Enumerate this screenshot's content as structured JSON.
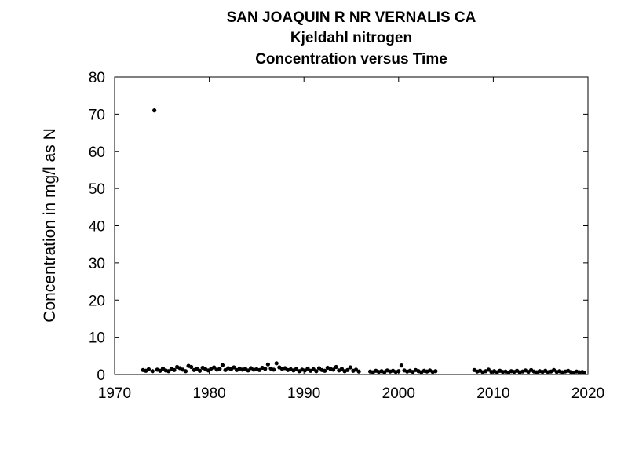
{
  "chart_data": {
    "type": "scatter",
    "title": "SAN JOAQUIN R NR VERNALIS CA",
    "subtitle": "Kjeldahl nitrogen",
    "subtitle2": "Concentration versus Time",
    "xlabel": "",
    "ylabel": "Concentration in mg/l as N",
    "xlim": [
      1970,
      2020
    ],
    "ylim": [
      0,
      80
    ],
    "xticks": [
      1970,
      1980,
      1990,
      2000,
      2010,
      2020
    ],
    "yticks": [
      0,
      10,
      20,
      30,
      40,
      50,
      60,
      70,
      80
    ],
    "grid": false,
    "legend": "none",
    "marker_color": "#000000",
    "series": [
      {
        "points": [
          [
            1973.0,
            1.2
          ],
          [
            1973.3,
            1.0
          ],
          [
            1973.6,
            1.4
          ],
          [
            1974.0,
            0.9
          ],
          [
            1974.2,
            71.0
          ],
          [
            1974.5,
            1.3
          ],
          [
            1974.8,
            1.0
          ],
          [
            1975.1,
            1.6
          ],
          [
            1975.4,
            1.1
          ],
          [
            1975.7,
            0.9
          ],
          [
            1976.0,
            1.5
          ],
          [
            1976.3,
            1.2
          ],
          [
            1976.6,
            2.0
          ],
          [
            1976.9,
            1.7
          ],
          [
            1977.2,
            1.3
          ],
          [
            1977.5,
            0.9
          ],
          [
            1977.8,
            2.3
          ],
          [
            1978.1,
            2.0
          ],
          [
            1978.4,
            1.2
          ],
          [
            1978.7,
            1.5
          ],
          [
            1979.0,
            1.0
          ],
          [
            1979.3,
            1.8
          ],
          [
            1979.6,
            1.4
          ],
          [
            1979.9,
            1.1
          ],
          [
            1980.2,
            1.6
          ],
          [
            1980.5,
            1.9
          ],
          [
            1980.8,
            1.3
          ],
          [
            1981.1,
            1.5
          ],
          [
            1981.4,
            2.5
          ],
          [
            1981.7,
            1.2
          ],
          [
            1982.0,
            1.7
          ],
          [
            1982.3,
            1.4
          ],
          [
            1982.6,
            1.9
          ],
          [
            1982.9,
            1.2
          ],
          [
            1983.2,
            1.6
          ],
          [
            1983.5,
            1.3
          ],
          [
            1983.8,
            1.5
          ],
          [
            1984.1,
            1.1
          ],
          [
            1984.4,
            1.7
          ],
          [
            1984.7,
            1.3
          ],
          [
            1985.0,
            1.4
          ],
          [
            1985.3,
            1.2
          ],
          [
            1985.6,
            1.8
          ],
          [
            1985.9,
            1.5
          ],
          [
            1986.2,
            2.7
          ],
          [
            1986.5,
            1.6
          ],
          [
            1986.8,
            1.3
          ],
          [
            1987.1,
            3.0
          ],
          [
            1987.4,
            1.9
          ],
          [
            1987.7,
            1.5
          ],
          [
            1988.0,
            1.7
          ],
          [
            1988.3,
            1.2
          ],
          [
            1988.6,
            1.4
          ],
          [
            1988.9,
            1.1
          ],
          [
            1989.2,
            1.5
          ],
          [
            1989.5,
            0.9
          ],
          [
            1989.8,
            1.3
          ],
          [
            1990.1,
            1.1
          ],
          [
            1990.4,
            1.6
          ],
          [
            1990.7,
            1.0
          ],
          [
            1991.0,
            1.4
          ],
          [
            1991.3,
            0.9
          ],
          [
            1991.6,
            1.7
          ],
          [
            1991.9,
            1.2
          ],
          [
            1992.2,
            1.0
          ],
          [
            1992.5,
            1.8
          ],
          [
            1992.8,
            1.5
          ],
          [
            1993.1,
            1.3
          ],
          [
            1993.4,
            2.0
          ],
          [
            1993.7,
            1.1
          ],
          [
            1994.0,
            1.5
          ],
          [
            1994.3,
            0.9
          ],
          [
            1994.6,
            1.2
          ],
          [
            1994.9,
            1.9
          ],
          [
            1995.2,
            1.0
          ],
          [
            1995.5,
            1.3
          ],
          [
            1995.8,
            0.8
          ],
          [
            1997.0,
            0.8
          ],
          [
            1997.3,
            0.6
          ],
          [
            1997.6,
            1.0
          ],
          [
            1997.9,
            0.7
          ],
          [
            1998.2,
            0.9
          ],
          [
            1998.5,
            0.6
          ],
          [
            1998.8,
            1.1
          ],
          [
            1999.1,
            0.8
          ],
          [
            1999.4,
            1.0
          ],
          [
            1999.7,
            0.7
          ],
          [
            2000.0,
            0.9
          ],
          [
            2000.3,
            2.4
          ],
          [
            2000.6,
            1.1
          ],
          [
            2000.9,
            0.8
          ],
          [
            2001.2,
            1.0
          ],
          [
            2001.5,
            0.7
          ],
          [
            2001.8,
            1.2
          ],
          [
            2002.1,
            0.9
          ],
          [
            2002.4,
            0.6
          ],
          [
            2002.7,
            1.0
          ],
          [
            2003.0,
            0.8
          ],
          [
            2003.3,
            1.1
          ],
          [
            2003.6,
            0.7
          ],
          [
            2003.9,
            0.9
          ],
          [
            2008.0,
            1.2
          ],
          [
            2008.3,
            0.8
          ],
          [
            2008.6,
            1.0
          ],
          [
            2008.9,
            0.6
          ],
          [
            2009.2,
            0.9
          ],
          [
            2009.5,
            1.3
          ],
          [
            2009.8,
            0.7
          ],
          [
            2010.1,
            0.9
          ],
          [
            2010.4,
            0.6
          ],
          [
            2010.7,
            1.0
          ],
          [
            2011.0,
            0.7
          ],
          [
            2011.3,
            0.8
          ],
          [
            2011.6,
            0.5
          ],
          [
            2011.9,
            0.9
          ],
          [
            2012.2,
            0.7
          ],
          [
            2012.5,
            1.0
          ],
          [
            2012.8,
            0.6
          ],
          [
            2013.1,
            0.8
          ],
          [
            2013.4,
            1.1
          ],
          [
            2013.7,
            0.7
          ],
          [
            2014.0,
            1.2
          ],
          [
            2014.3,
            0.8
          ],
          [
            2014.6,
            0.6
          ],
          [
            2014.9,
            0.9
          ],
          [
            2015.2,
            0.7
          ],
          [
            2015.5,
            1.0
          ],
          [
            2015.8,
            0.6
          ],
          [
            2016.1,
            0.8
          ],
          [
            2016.4,
            1.2
          ],
          [
            2016.7,
            0.7
          ],
          [
            2017.0,
            0.9
          ],
          [
            2017.3,
            0.6
          ],
          [
            2017.6,
            0.8
          ],
          [
            2017.9,
            1.0
          ],
          [
            2018.2,
            0.7
          ],
          [
            2018.5,
            0.5
          ],
          [
            2018.8,
            0.8
          ],
          [
            2019.1,
            0.6
          ],
          [
            2019.4,
            0.7
          ],
          [
            2019.6,
            0.5
          ]
        ]
      }
    ]
  }
}
